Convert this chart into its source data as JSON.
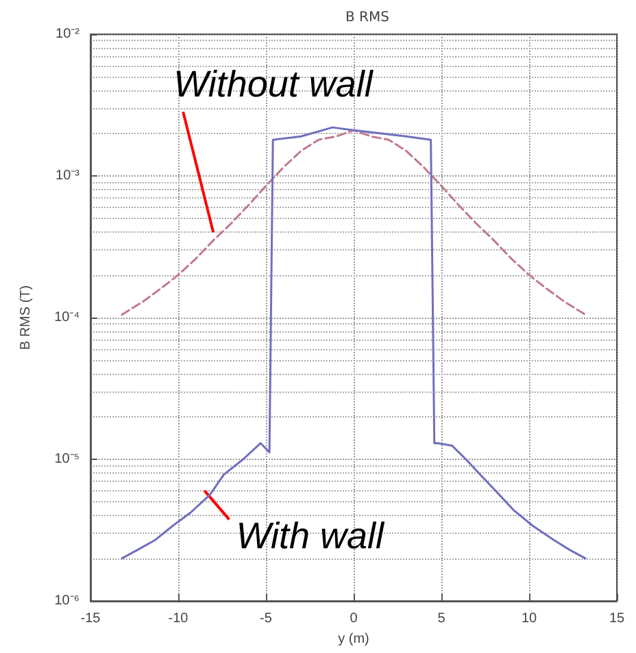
{
  "chart_data": {
    "type": "line",
    "title": "B RMS",
    "xlabel": "y (m)",
    "ylabel": "B RMS (T)",
    "log": "y",
    "grid": true,
    "marker": "none",
    "xlim": [
      -15,
      15
    ],
    "xticks": [
      -15,
      -10,
      -5,
      0,
      5,
      10,
      15
    ],
    "ylim": [
      1e-06,
      0.01
    ],
    "yticks": [
      {
        "value": 1e-06,
        "label": "10⁻⁶"
      },
      {
        "value": 1e-05,
        "label": "10⁻⁵"
      },
      {
        "value": 0.0001,
        "label": "10⁻⁴"
      },
      {
        "value": 0.001,
        "label": "10⁻³"
      },
      {
        "value": 0.01,
        "label": "10⁻²"
      }
    ],
    "series": [
      {
        "color": "#c27a8c",
        "line_style": "dashed",
        "x": [
          -13.2,
          -12,
          -11,
          -10,
          -9,
          -8,
          -7,
          -6,
          -5,
          -4,
          -3,
          -2,
          -1,
          0,
          1,
          2,
          3,
          4,
          5,
          6,
          7,
          8,
          9,
          10,
          11,
          12,
          13.2
        ],
        "values": [
          0.000105,
          0.00013,
          0.00016,
          0.0002,
          0.00026,
          0.00035,
          0.00046,
          0.00062,
          0.00085,
          0.00115,
          0.0015,
          0.0018,
          0.0019,
          0.0021,
          0.0019,
          0.0018,
          0.0015,
          0.00115,
          0.00085,
          0.00062,
          0.00046,
          0.00035,
          0.00026,
          0.0002,
          0.00016,
          0.00013,
          0.000105
        ]
      },
      {
        "color": "#6f6fc0",
        "line_style": "solid",
        "x": [
          -13.2,
          -12.3,
          -11.3,
          -10.3,
          -9.3,
          -8.2,
          -7.4,
          -6.3,
          -5.3,
          -4.8,
          -4.6,
          -3,
          -1.2,
          0,
          1.5,
          3,
          4.4,
          4.6,
          4.8,
          5.6,
          6.4,
          7.3,
          8.2,
          9.1,
          10.2,
          11.4,
          12.3,
          13.2
        ],
        "values": [
          2e-06,
          2.3e-06,
          2.7e-06,
          3.4e-06,
          4.2e-06,
          5.6e-06,
          7.8e-06,
          1e-05,
          1.3e-05,
          1.12e-05,
          0.0018,
          0.0019,
          0.0022,
          0.0021,
          0.002,
          0.0019,
          0.0018,
          1.3e-05,
          1.3e-05,
          1.25e-05,
          1e-05,
          7.6e-06,
          5.8e-06,
          4.4e-06,
          3.4e-06,
          2.7e-06,
          2.3e-06,
          2e-06
        ]
      }
    ],
    "annotations": [
      {
        "text": "Without wall",
        "x": -8,
        "y": 0.0004
      },
      {
        "text": "With wall",
        "x": -8.5,
        "y": 6e-06
      }
    ]
  }
}
